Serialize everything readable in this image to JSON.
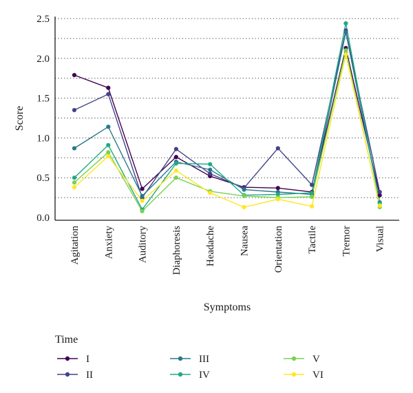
{
  "chart_data": {
    "type": "line",
    "xlabel": "Symptoms",
    "ylabel": "Score",
    "ylim": [
      0,
      2.5
    ],
    "yticks": [
      "0.0",
      "0.5",
      "1.0",
      "1.5",
      "2.0",
      "2.5"
    ],
    "grid": true,
    "legend_title": "Time",
    "legend_position": "bottom",
    "categories": [
      "Agitation",
      "Anxiety",
      "Auditory",
      "Diaphoresis",
      "Headache",
      "Nausea",
      "Orientation",
      "Tactile",
      "Tremor",
      "Visual"
    ],
    "series": [
      {
        "name": "I",
        "color": "#440154",
        "values": [
          1.79,
          1.63,
          0.36,
          0.76,
          0.52,
          0.38,
          0.37,
          0.32,
          2.13,
          0.28
        ]
      },
      {
        "name": "II",
        "color": "#414487",
        "values": [
          1.35,
          1.55,
          0.25,
          0.86,
          0.55,
          0.37,
          0.87,
          0.41,
          2.35,
          0.32
        ]
      },
      {
        "name": "III",
        "color": "#2a788e",
        "values": [
          0.87,
          1.14,
          0.27,
          0.7,
          0.6,
          0.35,
          0.32,
          0.29,
          2.33,
          0.19
        ]
      },
      {
        "name": "IV",
        "color": "#22a884",
        "values": [
          0.5,
          0.91,
          0.1,
          0.68,
          0.67,
          0.28,
          0.29,
          0.31,
          2.44,
          0.18
        ]
      },
      {
        "name": "V",
        "color": "#7ad151",
        "values": [
          0.44,
          0.82,
          0.08,
          0.5,
          0.33,
          0.27,
          0.25,
          0.26,
          2.1,
          0.13
        ]
      },
      {
        "name": "VI",
        "color": "#fde725",
        "values": [
          0.38,
          0.77,
          0.21,
          0.59,
          0.31,
          0.13,
          0.23,
          0.14,
          2.05,
          0.15
        ]
      }
    ]
  }
}
